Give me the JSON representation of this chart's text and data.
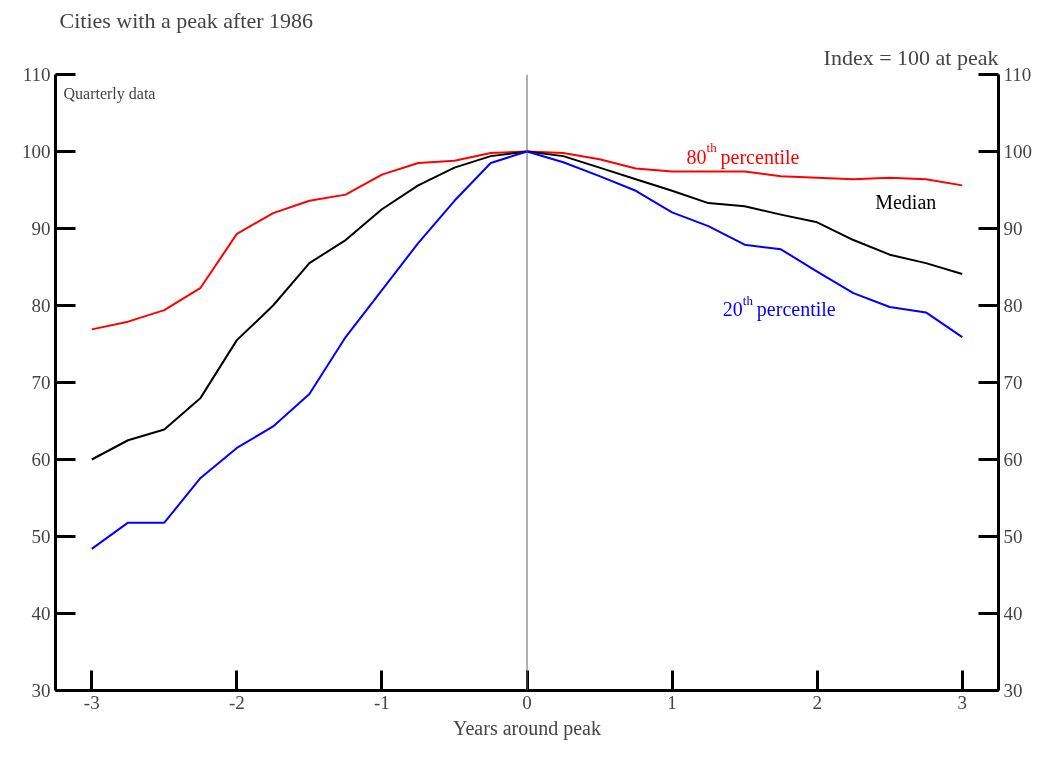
{
  "chart_data": {
    "type": "line",
    "title": "Cities with a peak after 1986",
    "xlabel": "Years around peak",
    "annotations": [
      "Quarterly data",
      "Index = 100 at peak"
    ],
    "x": [
      -3,
      -2.75,
      -2.5,
      -2.25,
      -2,
      -1.75,
      -1.5,
      -1.25,
      -1,
      -0.75,
      -0.5,
      -0.25,
      0,
      0.25,
      0.5,
      0.75,
      1,
      1.25,
      1.5,
      1.75,
      2,
      2.25,
      2.5,
      2.75,
      3
    ],
    "series": [
      {
        "name": "80$^{th}$ percentile",
        "color": "#ff0000",
        "values": [
          76.9,
          77.9,
          79.4,
          82.3,
          89.3,
          92.0,
          93.6,
          94.4,
          97.0,
          98.5,
          98.8,
          99.8,
          100,
          99.8,
          99.0,
          97.8,
          97.4,
          97.4,
          97.4,
          96.8,
          96.6,
          96.4,
          96.6,
          96.4,
          95.6
        ]
      },
      {
        "name": "Median",
        "color": "#000000",
        "values": [
          60.0,
          62.5,
          63.9,
          68.0,
          75.5,
          80.0,
          85.5,
          88.5,
          92.5,
          95.6,
          97.9,
          99.4,
          100,
          99.4,
          97.9,
          96.4,
          94.9,
          93.3,
          92.9,
          91.8,
          90.8,
          88.5,
          86.6,
          85.5,
          84.1
        ]
      },
      {
        "name": "20$^{th}$ percentile",
        "color": "#0000ff",
        "values": [
          48.4,
          51.8,
          51.8,
          57.6,
          61.5,
          64.3,
          68.5,
          75.9,
          82.0,
          88.1,
          93.6,
          98.5,
          100,
          98.6,
          96.8,
          94.9,
          92.1,
          90.3,
          87.9,
          87.3,
          84.4,
          81.6,
          79.8,
          79.1,
          75.9
        ]
      }
    ],
    "xlim": [
      -3.25,
      3.25
    ],
    "xticks": [
      -3,
      -2,
      -1,
      0,
      1,
      2,
      3
    ],
    "ylim": [
      30,
      110
    ],
    "yticks": [
      30,
      40,
      50,
      60,
      70,
      80,
      90,
      100,
      110
    ],
    "y2lim": [
      30,
      110
    ],
    "y2ticks": [
      30,
      40,
      50,
      60,
      70,
      80,
      90,
      100,
      110
    ],
    "ref_lines": [
      {
        "axis": "x",
        "value": 0,
        "color": "#606060"
      }
    ],
    "grid": false,
    "legend": false,
    "marker": "none",
    "line_style": "solid"
  }
}
